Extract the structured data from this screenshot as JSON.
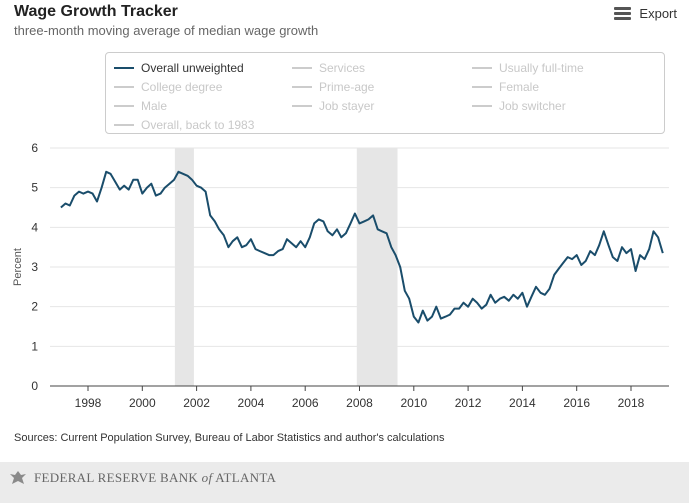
{
  "header": {
    "title": "Wage Growth Tracker",
    "subtitle": "three-month moving average of median wage growth",
    "export_label": "Export"
  },
  "legend": {
    "items": [
      {
        "label": "Overall unweighted",
        "active": true,
        "color": "#1a4d6b"
      },
      {
        "label": "Services",
        "active": false,
        "color": "#cccccc"
      },
      {
        "label": "Usually full-time",
        "active": false,
        "color": "#cccccc"
      },
      {
        "label": "College degree",
        "active": false,
        "color": "#cccccc"
      },
      {
        "label": "Prime-age",
        "active": false,
        "color": "#cccccc"
      },
      {
        "label": "Female",
        "active": false,
        "color": "#cccccc"
      },
      {
        "label": "Male",
        "active": false,
        "color": "#cccccc"
      },
      {
        "label": "Job stayer",
        "active": false,
        "color": "#cccccc"
      },
      {
        "label": "Job switcher",
        "active": false,
        "color": "#cccccc"
      },
      {
        "label": "Overall, back to 1983",
        "active": false,
        "color": "#cccccc"
      }
    ]
  },
  "chart_data": {
    "type": "line",
    "title": "Wage Growth Tracker",
    "subtitle": "three-month moving average of median wage growth",
    "ylabel": "Percent",
    "xlabel": "",
    "ylim": [
      0,
      6
    ],
    "xlim": [
      1996.6,
      2019.4
    ],
    "yticks": [
      "0",
      "1",
      "2",
      "3",
      "4",
      "5",
      "6"
    ],
    "xticks": [
      "1998",
      "2000",
      "2002",
      "2004",
      "2006",
      "2008",
      "2010",
      "2012",
      "2014",
      "2016",
      "2018"
    ],
    "grid": true,
    "recession_shading": [
      [
        2001.2,
        2001.9
      ],
      [
        2007.9,
        2009.4
      ]
    ],
    "series": [
      {
        "name": "Overall unweighted",
        "color": "#1a4d6b",
        "points": [
          [
            1997.0,
            4.5
          ],
          [
            1997.17,
            4.6
          ],
          [
            1997.33,
            4.55
          ],
          [
            1997.5,
            4.8
          ],
          [
            1997.67,
            4.9
          ],
          [
            1997.83,
            4.85
          ],
          [
            1998.0,
            4.9
          ],
          [
            1998.17,
            4.85
          ],
          [
            1998.33,
            4.65
          ],
          [
            1998.5,
            5.0
          ],
          [
            1998.67,
            5.4
          ],
          [
            1998.83,
            5.35
          ],
          [
            1999.0,
            5.15
          ],
          [
            1999.17,
            4.95
          ],
          [
            1999.33,
            5.05
          ],
          [
            1999.5,
            4.95
          ],
          [
            1999.67,
            5.2
          ],
          [
            1999.83,
            5.2
          ],
          [
            2000.0,
            4.85
          ],
          [
            2000.17,
            5.0
          ],
          [
            2000.33,
            5.1
          ],
          [
            2000.5,
            4.8
          ],
          [
            2000.67,
            4.85
          ],
          [
            2000.83,
            5.0
          ],
          [
            2001.0,
            5.1
          ],
          [
            2001.17,
            5.2
          ],
          [
            2001.33,
            5.4
          ],
          [
            2001.5,
            5.35
          ],
          [
            2001.67,
            5.3
          ],
          [
            2001.83,
            5.2
          ],
          [
            2002.0,
            5.05
          ],
          [
            2002.17,
            5.0
          ],
          [
            2002.33,
            4.9
          ],
          [
            2002.5,
            4.3
          ],
          [
            2002.67,
            4.15
          ],
          [
            2002.83,
            3.95
          ],
          [
            2003.0,
            3.8
          ],
          [
            2003.17,
            3.5
          ],
          [
            2003.33,
            3.65
          ],
          [
            2003.5,
            3.75
          ],
          [
            2003.67,
            3.5
          ],
          [
            2003.83,
            3.55
          ],
          [
            2004.0,
            3.7
          ],
          [
            2004.17,
            3.45
          ],
          [
            2004.33,
            3.4
          ],
          [
            2004.5,
            3.35
          ],
          [
            2004.67,
            3.3
          ],
          [
            2004.83,
            3.3
          ],
          [
            2005.0,
            3.4
          ],
          [
            2005.17,
            3.45
          ],
          [
            2005.33,
            3.7
          ],
          [
            2005.5,
            3.6
          ],
          [
            2005.67,
            3.5
          ],
          [
            2005.83,
            3.65
          ],
          [
            2006.0,
            3.5
          ],
          [
            2006.17,
            3.75
          ],
          [
            2006.33,
            4.1
          ],
          [
            2006.5,
            4.2
          ],
          [
            2006.67,
            4.15
          ],
          [
            2006.83,
            3.9
          ],
          [
            2007.0,
            3.8
          ],
          [
            2007.17,
            3.95
          ],
          [
            2007.33,
            3.75
          ],
          [
            2007.5,
            3.85
          ],
          [
            2007.67,
            4.1
          ],
          [
            2007.83,
            4.35
          ],
          [
            2008.0,
            4.1
          ],
          [
            2008.17,
            4.15
          ],
          [
            2008.33,
            4.2
          ],
          [
            2008.5,
            4.3
          ],
          [
            2008.67,
            3.95
          ],
          [
            2008.83,
            3.9
          ],
          [
            2009.0,
            3.85
          ],
          [
            2009.17,
            3.5
          ],
          [
            2009.33,
            3.3
          ],
          [
            2009.5,
            3.0
          ],
          [
            2009.67,
            2.4
          ],
          [
            2009.83,
            2.2
          ],
          [
            2010.0,
            1.75
          ],
          [
            2010.17,
            1.6
          ],
          [
            2010.33,
            1.9
          ],
          [
            2010.5,
            1.65
          ],
          [
            2010.67,
            1.75
          ],
          [
            2010.83,
            2.0
          ],
          [
            2011.0,
            1.7
          ],
          [
            2011.17,
            1.75
          ],
          [
            2011.33,
            1.8
          ],
          [
            2011.5,
            1.95
          ],
          [
            2011.67,
            1.95
          ],
          [
            2011.83,
            2.1
          ],
          [
            2012.0,
            2.0
          ],
          [
            2012.17,
            2.2
          ],
          [
            2012.33,
            2.1
          ],
          [
            2012.5,
            1.95
          ],
          [
            2012.67,
            2.05
          ],
          [
            2012.83,
            2.3
          ],
          [
            2013.0,
            2.1
          ],
          [
            2013.17,
            2.2
          ],
          [
            2013.33,
            2.25
          ],
          [
            2013.5,
            2.15
          ],
          [
            2013.67,
            2.3
          ],
          [
            2013.83,
            2.2
          ],
          [
            2014.0,
            2.35
          ],
          [
            2014.17,
            2.0
          ],
          [
            2014.33,
            2.25
          ],
          [
            2014.5,
            2.5
          ],
          [
            2014.67,
            2.35
          ],
          [
            2014.83,
            2.3
          ],
          [
            2015.0,
            2.45
          ],
          [
            2015.17,
            2.8
          ],
          [
            2015.33,
            2.95
          ],
          [
            2015.5,
            3.1
          ],
          [
            2015.67,
            3.25
          ],
          [
            2015.83,
            3.2
          ],
          [
            2016.0,
            3.3
          ],
          [
            2016.17,
            3.05
          ],
          [
            2016.33,
            3.15
          ],
          [
            2016.5,
            3.4
          ],
          [
            2016.67,
            3.3
          ],
          [
            2016.83,
            3.55
          ],
          [
            2017.0,
            3.9
          ],
          [
            2017.17,
            3.55
          ],
          [
            2017.33,
            3.25
          ],
          [
            2017.5,
            3.15
          ],
          [
            2017.67,
            3.5
          ],
          [
            2017.83,
            3.35
          ],
          [
            2018.0,
            3.45
          ],
          [
            2018.17,
            2.9
          ],
          [
            2018.33,
            3.3
          ],
          [
            2018.5,
            3.2
          ],
          [
            2018.67,
            3.45
          ],
          [
            2018.83,
            3.9
          ],
          [
            2019.0,
            3.75
          ],
          [
            2019.17,
            3.35
          ]
        ]
      }
    ]
  },
  "footer": {
    "sources": "Sources: Current Population Survey, Bureau of Labor Statistics and author's calculations",
    "bank_name_pre": "FEDERAL RESERVE BANK",
    "bank_name_of": "of",
    "bank_name_post": "ATLANTA"
  }
}
